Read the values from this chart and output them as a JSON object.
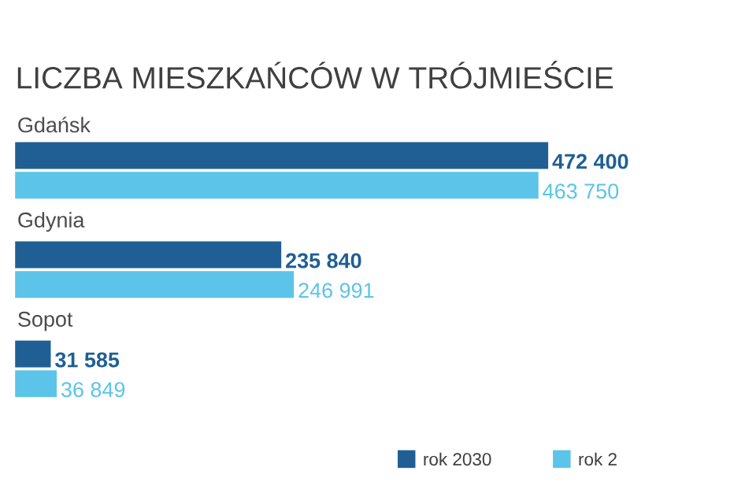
{
  "chart_data": {
    "type": "bar",
    "orientation": "horizontal",
    "title": "LICZBA MIESZKAŃCÓW W TRÓJMIEŚCIE",
    "categories": [
      "Gdańsk",
      "Gdynia",
      "Sopot"
    ],
    "series": [
      {
        "name": "rok 2030",
        "color": "#1f5f94",
        "values": [
          472400,
          235840,
          31585
        ],
        "value_labels": [
          "472 400",
          "235 840",
          "31 585"
        ]
      },
      {
        "name": "rok 2",
        "color": "#5bc4e8",
        "values": [
          463750,
          246991,
          36849
        ],
        "value_labels": [
          "463 750",
          "246 991",
          "36 849"
        ]
      }
    ],
    "legend": "bottom right",
    "tick_labels": false
  }
}
